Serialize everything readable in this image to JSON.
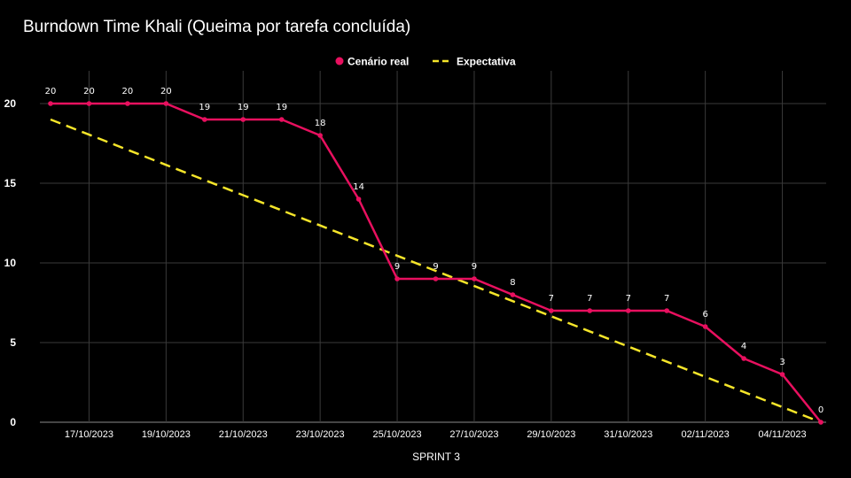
{
  "chart_data": {
    "type": "line",
    "title": "Burndown Time Khali (Queima por tarefa concluída)",
    "xlabel": "SPRINT 3",
    "ylabel": "",
    "ylim": [
      0,
      20
    ],
    "yticks": [
      "0",
      "5",
      "10",
      "15",
      "20"
    ],
    "grid": true,
    "legend_position": "top-center",
    "x": [
      "16/10/2023",
      "17/10/2023",
      "18/10/2023",
      "19/10/2023",
      "20/10/2023",
      "21/10/2023",
      "22/10/2023",
      "23/10/2023",
      "24/10/2023",
      "25/10/2023",
      "26/10/2023",
      "27/10/2023",
      "28/10/2023",
      "29/10/2023",
      "30/10/2023",
      "31/10/2023",
      "01/11/2023",
      "02/11/2023",
      "03/11/2023",
      "04/11/2023",
      "05/11/2023"
    ],
    "xtick_labels": [
      "17/10/2023",
      "19/10/2023",
      "21/10/2023",
      "23/10/2023",
      "25/10/2023",
      "27/10/2023",
      "29/10/2023",
      "31/10/2023",
      "02/11/2023",
      "04/11/2023"
    ],
    "series": [
      {
        "name": "Cenário real",
        "color": "#e8105f",
        "style": "solid",
        "values": [
          20,
          20,
          20,
          20,
          19,
          19,
          19,
          18,
          14,
          9,
          9,
          9,
          8,
          7,
          7,
          7,
          7,
          6,
          4,
          3,
          0
        ],
        "data_labels": [
          "20",
          "20",
          "20",
          "20",
          "19",
          "19",
          "19",
          "18",
          "14",
          "9",
          "9",
          "9",
          "8",
          "7",
          "7",
          "7",
          "7",
          "6",
          "4",
          "3",
          "0"
        ]
      },
      {
        "name": "Expectativa",
        "color": "#f5e52a",
        "style": "dashed",
        "values": [
          19,
          18.05,
          17.1,
          16.15,
          15.2,
          14.25,
          13.3,
          12.35,
          11.4,
          10.45,
          9.5,
          8.55,
          7.6,
          6.65,
          5.7,
          4.75,
          3.8,
          2.85,
          1.9,
          0.95,
          0
        ]
      }
    ]
  }
}
